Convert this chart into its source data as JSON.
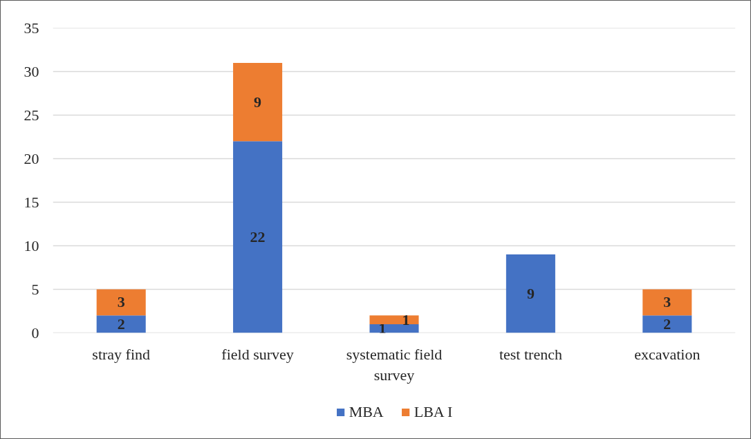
{
  "chart_data": {
    "type": "bar",
    "stacked": true,
    "categories": [
      "stray find",
      "field survey",
      "systematic field survey",
      "test trench",
      "excavation"
    ],
    "series": [
      {
        "name": "MBA",
        "color": "#4472c4",
        "values": [
          2,
          22,
          1,
          9,
          2
        ]
      },
      {
        "name": "LBA I",
        "color": "#ed7d31",
        "values": [
          3,
          9,
          1,
          null,
          3
        ]
      }
    ],
    "ylim": [
      0,
      35
    ],
    "yticks": [
      0,
      5,
      10,
      15,
      20,
      25,
      30,
      35
    ],
    "grid": "y",
    "legend": "bottom",
    "data_labels": true
  }
}
